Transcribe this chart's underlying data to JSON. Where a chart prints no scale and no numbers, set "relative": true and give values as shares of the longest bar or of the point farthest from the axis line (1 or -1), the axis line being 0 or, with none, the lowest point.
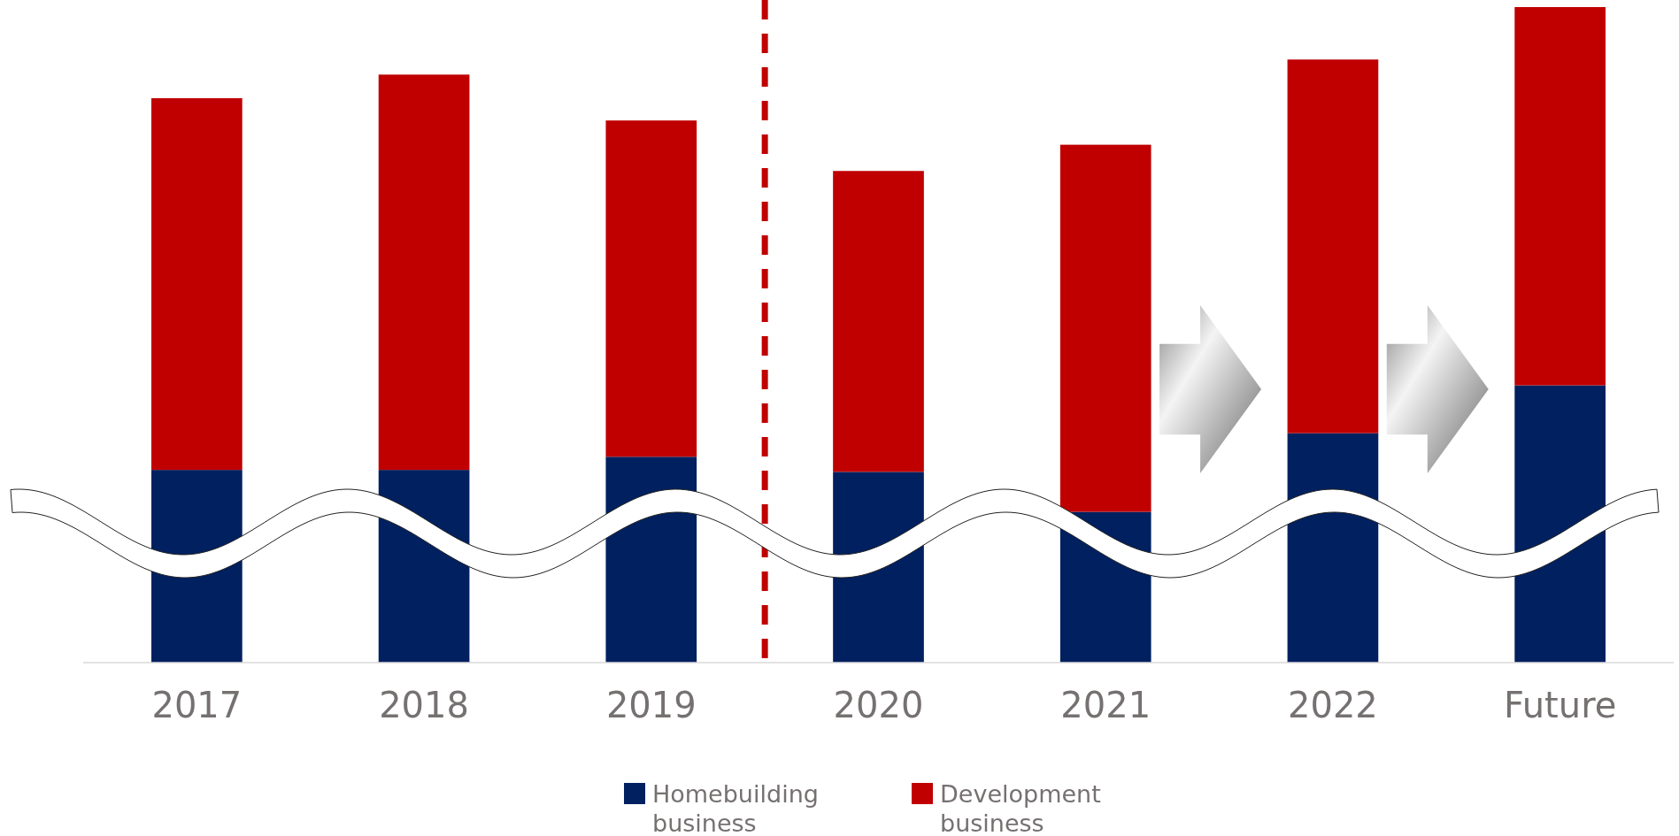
{
  "chart_data": {
    "type": "bar",
    "stacked": true,
    "relative": true,
    "categories": [
      "2017",
      "2018",
      "2019",
      "2020",
      "2021",
      "2022",
      "Future"
    ],
    "series": [
      {
        "name": "Homebuilding business",
        "color": "#002060",
        "values": [
          0.294,
          0.294,
          0.314,
          0.291,
          0.23,
          0.35,
          0.423
        ]
      },
      {
        "name": "Development business",
        "color": "#c00000",
        "values": [
          0.567,
          0.603,
          0.513,
          0.459,
          0.56,
          0.57,
          0.577
        ]
      }
    ],
    "legend": "bottom"
  }
}
